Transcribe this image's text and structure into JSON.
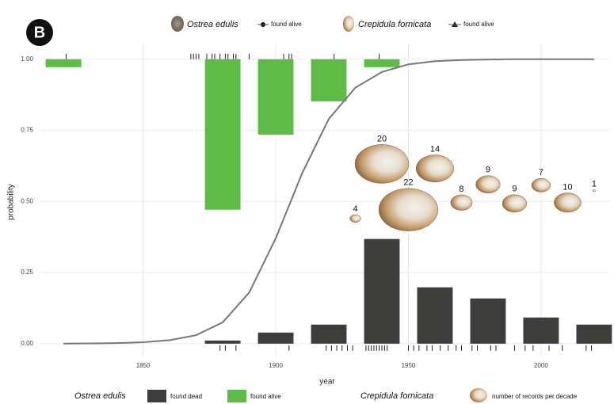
{
  "chart_data": {
    "type": "bar",
    "panel_label": "B",
    "xlabel": "year",
    "ylabel": "probability",
    "xlim": [
      1811,
      2026
    ],
    "ylim": [
      -0.045,
      1.055
    ],
    "xticks": [
      1850,
      1900,
      1950,
      2000
    ],
    "yticks": [
      {
        "value": 0,
        "label": "0.00"
      },
      {
        "value": 0.25,
        "label": "0.25"
      },
      {
        "value": 0.5,
        "label": "0.50"
      },
      {
        "value": 0.75,
        "label": "0.75"
      },
      {
        "value": 1,
        "label": "1.00"
      }
    ],
    "grid": true,
    "top_legend": [
      {
        "species": "Ostrea edulis",
        "label": "found alive"
      },
      {
        "species": "Crepidula fornicata",
        "label": "found alive"
      }
    ],
    "legend_groups": [
      "Ostrea edulis",
      "Crepidula fornicata"
    ],
    "series": [
      {
        "name": "found dead",
        "type": "bar",
        "color": "#3d3d3b",
        "x": [
          1880,
          1900,
          1920,
          1940,
          1960,
          1980,
          2000,
          2020
        ],
        "values": [
          0.011,
          0.039,
          0.067,
          0.368,
          0.198,
          0.159,
          0.092,
          0.067
        ]
      },
      {
        "name": "found alive",
        "type": "bar",
        "color": "#5dbb46",
        "baseline": 1,
        "x": [
          1820,
          1880,
          1900,
          1920,
          1940
        ],
        "values": [
          0.972,
          0.471,
          0.735,
          0.852,
          0.972
        ]
      },
      {
        "name": "number of records per decade",
        "type": "bubble",
        "color": "#c9a57a",
        "x": [
          1930,
          1940,
          1950,
          1960,
          1970,
          1980,
          1990,
          2000,
          2010,
          2020
        ],
        "values": [
          0.44,
          0.632,
          0.471,
          0.616,
          0.496,
          0.56,
          0.493,
          0.557,
          0.496,
          0.538
        ],
        "sizes": [
          4,
          20,
          22,
          14,
          8,
          9,
          9,
          7,
          10,
          1
        ]
      }
    ],
    "curve": {
      "color": "#777777",
      "x": [
        1820,
        1830,
        1840,
        1850,
        1860,
        1870,
        1880,
        1890,
        1900,
        1910,
        1920,
        1930,
        1940,
        1950,
        1960,
        1970,
        1980,
        1990,
        2000,
        2010,
        2020
      ],
      "values": [
        0,
        0.001,
        0.002,
        0.005,
        0.012,
        0.03,
        0.075,
        0.18,
        0.37,
        0.6,
        0.79,
        0.9,
        0.955,
        0.982,
        0.993,
        0.997,
        0.999,
        1,
        1,
        1,
        1
      ]
    },
    "rugs": [
      {
        "side": "top",
        "x": [
          1821,
          1868,
          1869,
          1870,
          1871,
          1874,
          1876,
          1877,
          1879,
          1881,
          1882,
          1884,
          1885,
          1890,
          1903,
          1905,
          1906,
          1922,
          1939
        ]
      },
      {
        "side": "bottom",
        "x": [
          1879,
          1881,
          1885,
          1905,
          1919,
          1921,
          1923,
          1925,
          1927,
          1929,
          1934,
          1935,
          1936,
          1937,
          1938,
          1939,
          1940,
          1941,
          1942,
          1950,
          1952,
          1954,
          1957,
          1959,
          1962,
          1965,
          1968,
          1970,
          1974,
          1976,
          1981,
          1983,
          1990,
          1994,
          1997,
          2003,
          2008,
          2017,
          2019
        ]
      }
    ]
  }
}
